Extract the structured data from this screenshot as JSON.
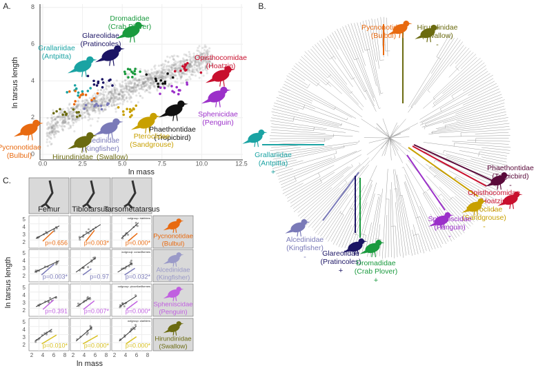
{
  "panel_a": {
    "label": "A.",
    "x_axis_label": "ln mass",
    "y_axis_label": "ln tarsus length",
    "x_ticks": [
      "0.0",
      "2.5",
      "5.0",
      "7.5",
      "10.0",
      "12.5"
    ],
    "y_ticks": [
      "0",
      "2",
      "4",
      "6",
      "8"
    ],
    "families": [
      {
        "name": "Dromadidae",
        "common": "(Crab Plover)"
      },
      {
        "name": "Glareolidae",
        "common": "(Pratincoles)"
      },
      {
        "name": "Grallariidae",
        "common": "(Antpitta)"
      },
      {
        "name": "Opisthocomidae",
        "common": "(Hoatzin)"
      },
      {
        "name": "Sphenicidae",
        "common": "(Penguin)"
      },
      {
        "name": "Phaethontidae",
        "common": "(Tropicbird)"
      },
      {
        "name": "Pteroclidae",
        "common": "(Sandgrouse)"
      },
      {
        "name": "Alcedinidae",
        "common": "(Kingfisher)"
      },
      {
        "name": "Pycnonotidae",
        "common": "(Bulbul)"
      },
      {
        "name": "Hirundinidae",
        "common": "(Swallow)"
      }
    ]
  },
  "panel_b": {
    "label": "B.",
    "families": [
      {
        "name": "Pycnonotidae",
        "common": "(Bulbul)",
        "sign": "-"
      },
      {
        "name": "Hirundinidae",
        "common": "(Swallow)",
        "sign": "-"
      },
      {
        "name": "Grallariidae",
        "common": "(Antpitta)",
        "sign": "+"
      },
      {
        "name": "Phaethontidae",
        "common": "(Tropicbird)",
        "sign": "-"
      },
      {
        "name": "Opisthocomidae",
        "common": "(Hoatzin)",
        "sign": "-"
      },
      {
        "name": "Pteroclidae",
        "common": "(Sandgrouse)",
        "sign": "-"
      },
      {
        "name": "Spheniscidae",
        "common": "(Penguin)",
        "sign": "-"
      },
      {
        "name": "Alcedinidae",
        "common": "(Kingfisher)",
        "sign": "-"
      },
      {
        "name": "Glareolidae",
        "common": "(Pratincoles)",
        "sign": "+"
      },
      {
        "name": "Dromadidae",
        "common": "(Crab Plover)",
        "sign": "+"
      }
    ]
  },
  "panel_c": {
    "label": "C.",
    "columns": [
      "Femur",
      "Tibiotarsus",
      "Tarsometatarsus"
    ],
    "x_ticks": [
      "2",
      "4",
      "6",
      "8"
    ],
    "y_ticks": [
      "2",
      "3",
      "4",
      "5"
    ],
    "x_axis_label": "ln mass",
    "y_axis_label": "ln tarsus length",
    "rows": [
      {
        "name": "Pycnonotidae",
        "common": "(Bulbul)",
        "outgroup": "outgroup: babblers",
        "p_values": [
          "p=0.656",
          "p=0.003*",
          "p=0.000*"
        ]
      },
      {
        "name": "Alcedinidae",
        "common": "(Kingfisher)",
        "outgroup": "outgroup: coraciiformes",
        "p_values": [
          "p=0.003*",
          "p=0.97",
          "p=0.032*"
        ]
      },
      {
        "name": "Spheniscidae",
        "common": "(Penguin)",
        "outgroup": "outgroup: procellariiformes",
        "p_values": [
          "p=0.391",
          "p=0.007*",
          "p=0.000*"
        ]
      },
      {
        "name": "Hirundinidae",
        "common": "(Swallow)",
        "outgroup": "outgroup: warblers",
        "p_values": [
          "p=0.010*",
          "p=0.000*",
          "p=0.000*"
        ]
      }
    ]
  }
}
